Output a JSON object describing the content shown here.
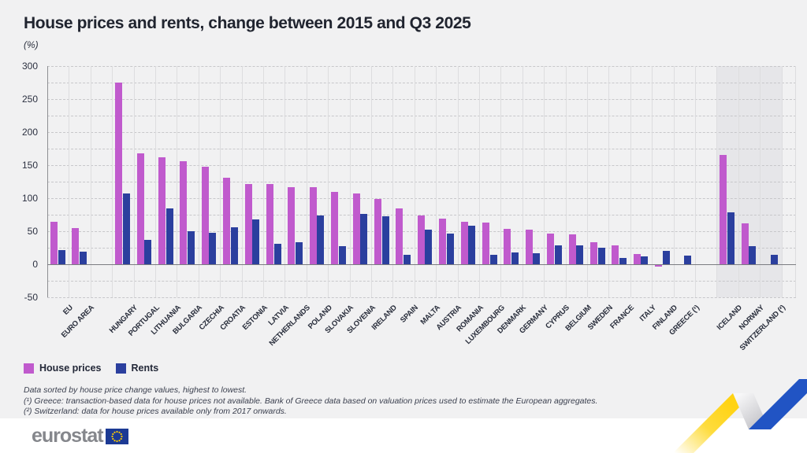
{
  "title": "House prices and rents, change between 2015 and Q3 2025",
  "subtitle": "(%)",
  "legend": [
    {
      "label": "House prices",
      "color": "#c05acd"
    },
    {
      "label": "Rents",
      "color": "#2b3f9e"
    }
  ],
  "footnotes": [
    "Data sorted by house price change values, highest to lowest.",
    "(¹) Greece: transaction-based data for house prices not available. Bank of Greece data based on valuation prices used to estimate the European aggregates.",
    "(²) Switzerland: data for house prices available only from 2017 onwards."
  ],
  "logo": {
    "text": "eurostat"
  },
  "colors": {
    "house_prices": "#c05acd",
    "rents": "#2b3f9e",
    "background": "#f1f1f2",
    "efta_band": "#e6e6e9",
    "ribbon_yellow": "#ffd617",
    "ribbon_blue": "#2154c4",
    "flag_blue": "#1c3a94",
    "flag_stars": "#ffcc00"
  },
  "chart_data": {
    "type": "bar",
    "title": "House prices and rents, change between 2015 and Q3 2025",
    "ylabel": "(%)",
    "xlabel": "",
    "ylim": [
      -50,
      300
    ],
    "ytick_label_step": 50,
    "gridline_step": 25,
    "grid": "dashed horizontal every 25, solid vertical between groups",
    "legend_position": "bottom-left",
    "yticks": [
      300,
      250,
      200,
      150,
      100,
      50,
      0,
      -50
    ],
    "categories": [
      "EU",
      "EURO AREA",
      "HUNGARY",
      "PORTUGAL",
      "LITHUANIA",
      "BULGARIA",
      "CZECHIA",
      "CROATIA",
      "ESTONIA",
      "LATVIA",
      "NETHERLANDS",
      "POLAND",
      "SLOVAKIA",
      "SLOVENIA",
      "IRELAND",
      "SPAIN",
      "MALTA",
      "AUSTRIA",
      "ROMANIA",
      "LUXEMBOURG",
      "DENMARK",
      "GERMANY",
      "CYPRUS",
      "BELGIUM",
      "SWEDEN",
      "FRANCE",
      "ITALY",
      "FINLAND",
      "GREECE (¹)",
      "ICELAND",
      "NORWAY",
      "SWITZERLAND (²)"
    ],
    "category_groups": [
      "eu-aggregate",
      "eu-aggregate",
      "eu-member",
      "eu-member",
      "eu-member",
      "eu-member",
      "eu-member",
      "eu-member",
      "eu-member",
      "eu-member",
      "eu-member",
      "eu-member",
      "eu-member",
      "eu-member",
      "eu-member",
      "eu-member",
      "eu-member",
      "eu-member",
      "eu-member",
      "eu-member",
      "eu-member",
      "eu-member",
      "eu-member",
      "eu-member",
      "eu-member",
      "eu-member",
      "eu-member",
      "eu-member",
      "eu-member",
      "efta",
      "efta",
      "efta"
    ],
    "series": [
      {
        "name": "House prices",
        "color": "#c05acd",
        "values": [
          64,
          55,
          275,
          168,
          162,
          156,
          148,
          131,
          122,
          121,
          117,
          117,
          109,
          107,
          99,
          84,
          74,
          69,
          64,
          63,
          54,
          52,
          46,
          45,
          33,
          29,
          16,
          -3,
          null,
          165,
          62,
          null
        ]
      },
      {
        "name": "Rents",
        "color": "#2b3f9e",
        "values": [
          21,
          19,
          107,
          37,
          84,
          50,
          48,
          56,
          68,
          31,
          33,
          74,
          27,
          76,
          73,
          14,
          52,
          47,
          58,
          14,
          18,
          17,
          29,
          29,
          25,
          10,
          12,
          20,
          13,
          78,
          27,
          14
        ]
      }
    ],
    "shaded_region": "EFTA countries (Iceland, Norway, Switzerland) drawn on a darker background band"
  }
}
